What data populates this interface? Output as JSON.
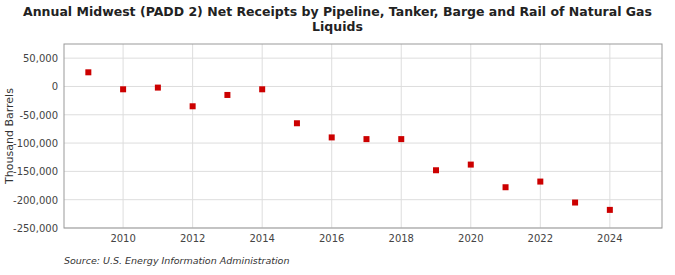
{
  "chart_data": {
    "type": "scatter",
    "title": "Annual Midwest (PADD 2) Net Receipts by Pipeline, Tanker, Barge and Rail of Natural Gas\nLiquids",
    "ylabel": "Thousand Barrels",
    "annotations": [
      "Source: U.S. Energy Information Administration"
    ],
    "x": [
      2009,
      2010,
      2011,
      2012,
      2013,
      2014,
      2015,
      2016,
      2017,
      2018,
      2019,
      2020,
      2021,
      2022,
      2023,
      2024
    ],
    "values": [
      25000,
      -5000,
      -2000,
      -35000,
      -15000,
      -5000,
      -65000,
      -90000,
      -93000,
      -93000,
      -148000,
      -138000,
      -178000,
      -168000,
      -205000,
      -218000
    ],
    "color": "#cc0000",
    "marker": "square",
    "grid": true,
    "xlim": [
      2008.3,
      2025.5
    ],
    "xticks": [
      2010,
      2012,
      2014,
      2016,
      2018,
      2020,
      2022,
      2024
    ],
    "ylim": [
      -250000,
      75000
    ],
    "yticks": [
      {
        "value": 50000,
        "label": "50,000"
      },
      0,
      {
        "value": -50000,
        "label": "-50,000"
      },
      {
        "value": -100000,
        "label": "-100,000"
      },
      {
        "value": -150000,
        "label": "-150,000"
      },
      {
        "value": -200000,
        "label": "-200,000"
      },
      {
        "value": -250000,
        "label": "-250,000"
      }
    ]
  }
}
